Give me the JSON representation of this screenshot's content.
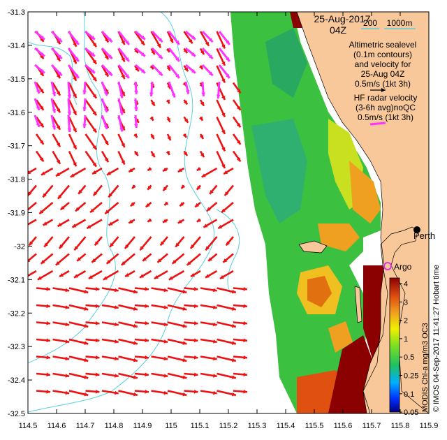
{
  "title": {
    "date": "25-Aug-2017",
    "time": "04Z"
  },
  "bathymetry_legend": {
    "label_200": "200",
    "label_1000": "1000m",
    "color_200": "#5ad0e0",
    "color_1000": "#5ad0e0"
  },
  "altimetry_note": {
    "line1": "Altimetric sealevel",
    "line2": "(0.1m contours)",
    "line3": "and velocity for",
    "line4": "25-Aug 04Z",
    "line5": "0.5m/s (1kt 3h)"
  },
  "radar_note": {
    "line1": "HF radar velocity",
    "line2": "(3-6h avg)noQC",
    "line3": "0.5m/s (1kt 3h)"
  },
  "places": {
    "city": "Perth",
    "float": "Argo"
  },
  "colorbar": {
    "title": "MODIS Chl-a mg/m3 OC3",
    "ticks": [
      "4",
      "3",
      "2",
      "1",
      "0.5",
      "0.25",
      "0.1",
      "0.05"
    ]
  },
  "credit": "© IMOS 04-Sep-2017 11:41:27 Hobart time",
  "axes": {
    "x_ticks": [
      "114.5",
      "114.6",
      "114.7",
      "114.8",
      "114.9",
      "115",
      "115.1",
      "115.2",
      "115.3",
      "115.4",
      "115.5",
      "115.6",
      "115.7",
      "115.8",
      "115.9"
    ],
    "y_ticks": [
      "-31.3",
      "-31.4",
      "-31.5",
      "-31.6",
      "-31.7",
      "-31.8",
      "-31.9",
      "-32",
      "-32.1",
      "-32.2",
      "-32.3",
      "-32.4",
      "-32.5"
    ],
    "xlim": [
      114.5,
      115.9
    ],
    "ylim": [
      -32.5,
      -31.3
    ]
  },
  "colors": {
    "land": "#f8c89a",
    "radar_vectors": "#ff33ff",
    "altimetry_vectors": "#ee1111",
    "argo_marker": "#dd33dd",
    "chl_high": "#8b0000",
    "chl_mid": "#f0a020",
    "chl_low": "#22aa33"
  }
}
